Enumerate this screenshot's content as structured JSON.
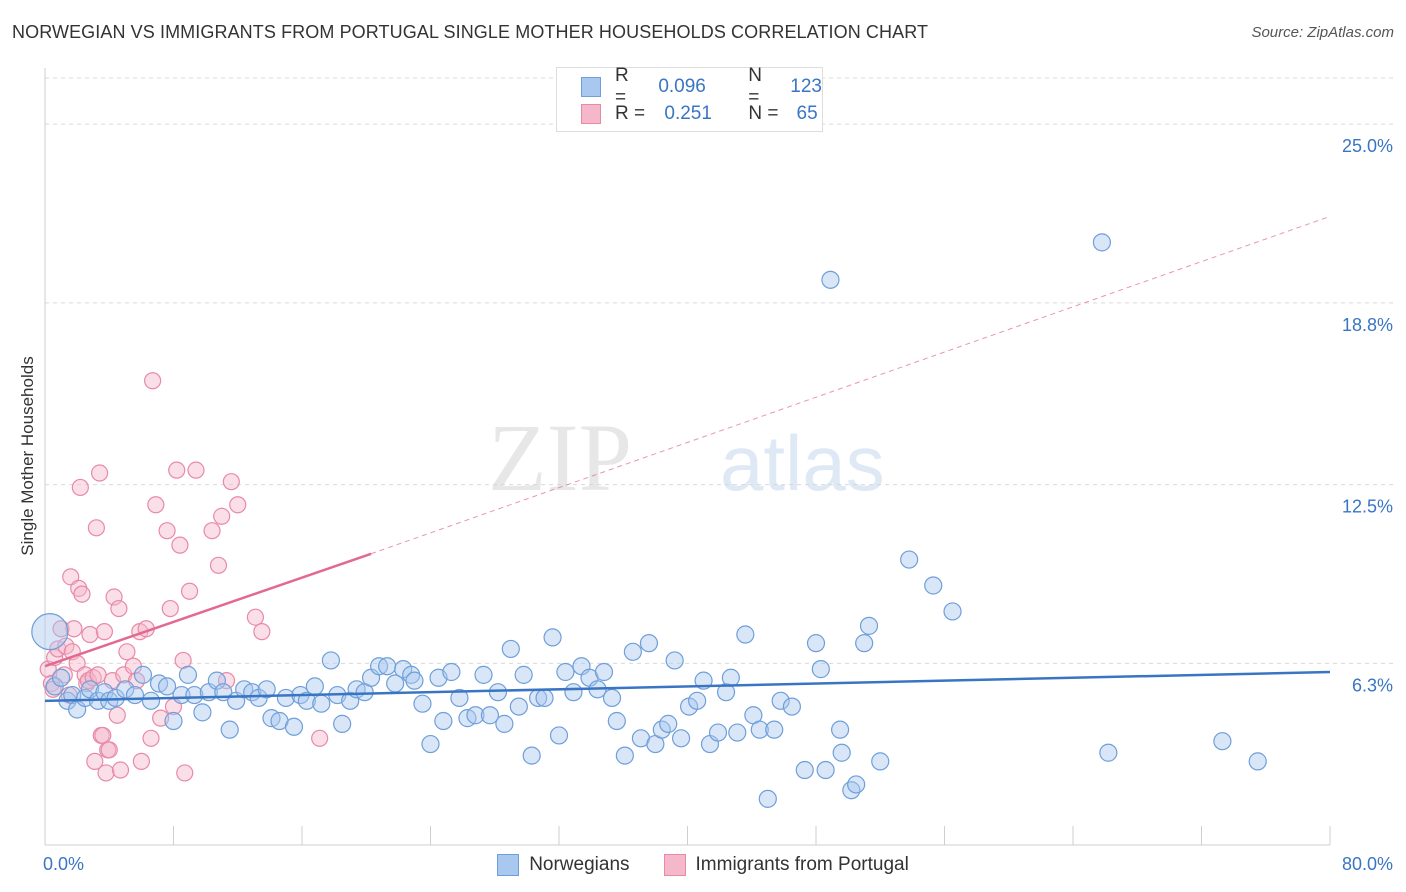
{
  "title": "NORWEGIAN VS IMMIGRANTS FROM PORTUGAL SINGLE MOTHER HOUSEHOLDS CORRELATION CHART",
  "source": "Source: ZipAtlas.com",
  "watermark": {
    "zip": "ZIP",
    "atlas": "atlas"
  },
  "legend": {
    "rows": [
      {
        "r_label": "R =",
        "r_value": "0.096",
        "n_label": "N =",
        "n_value": "123"
      },
      {
        "r_label": "R =",
        "r_value": "0.251",
        "n_label": "N =",
        "n_value": "65"
      }
    ]
  },
  "colors": {
    "blue_fill": "#a9c8ef",
    "blue_stroke": "#6f9fd8",
    "blue_line": "#3a75c4",
    "pink_fill": "#f5b8cb",
    "pink_stroke": "#e88aa7",
    "pink_line": "#e2698f",
    "grid": "#d9d9d9",
    "axis_text": "#3a75c4"
  },
  "chart_data": {
    "type": "scatter",
    "title": "NORWEGIAN VS IMMIGRANTS FROM PORTUGAL SINGLE MOTHER HOUSEHOLDS CORRELATION CHART",
    "xlabel": "",
    "ylabel": "Single Mother Households",
    "xlim": [
      0,
      80
    ],
    "ylim": [
      0,
      26.6
    ],
    "x_tick_labels": [
      "0.0%",
      "80.0%"
    ],
    "y_ticks": [
      6.3,
      12.5,
      18.8,
      25.0
    ],
    "y_tick_labels": [
      "6.3%",
      "12.5%",
      "18.8%",
      "25.0%"
    ],
    "grid": "horizontal dashed",
    "legend_position": "top-center",
    "series": [
      {
        "name": "Norwegians",
        "color": "#a9c8ef",
        "R": 0.096,
        "N": 123,
        "trend": {
          "x": [
            0,
            80
          ],
          "y": [
            5.0,
            6.0
          ]
        },
        "points": [
          [
            0.3,
            7.4
          ],
          [
            0.6,
            5.5
          ],
          [
            1.0,
            5.8
          ],
          [
            1.4,
            5.0
          ],
          [
            1.7,
            5.2
          ],
          [
            2.0,
            4.7
          ],
          [
            2.5,
            5.1
          ],
          [
            2.8,
            5.4
          ],
          [
            3.3,
            5.0
          ],
          [
            3.7,
            5.3
          ],
          [
            4.0,
            5.0
          ],
          [
            4.4,
            5.1
          ],
          [
            5.0,
            5.4
          ],
          [
            5.6,
            5.2
          ],
          [
            6.1,
            5.9
          ],
          [
            6.6,
            5.0
          ],
          [
            7.1,
            5.6
          ],
          [
            7.6,
            5.5
          ],
          [
            8.0,
            4.3
          ],
          [
            8.5,
            5.2
          ],
          [
            8.9,
            5.9
          ],
          [
            9.3,
            5.2
          ],
          [
            9.8,
            4.6
          ],
          [
            10.2,
            5.3
          ],
          [
            10.7,
            5.7
          ],
          [
            11.1,
            5.3
          ],
          [
            11.5,
            4.0
          ],
          [
            11.9,
            5.0
          ],
          [
            12.4,
            5.4
          ],
          [
            12.9,
            5.3
          ],
          [
            13.3,
            5.1
          ],
          [
            13.8,
            5.4
          ],
          [
            14.1,
            4.4
          ],
          [
            14.6,
            4.3
          ],
          [
            15.0,
            5.1
          ],
          [
            15.5,
            4.1
          ],
          [
            15.9,
            5.2
          ],
          [
            16.3,
            5.0
          ],
          [
            16.8,
            5.5
          ],
          [
            17.2,
            4.9
          ],
          [
            17.8,
            6.4
          ],
          [
            18.2,
            5.2
          ],
          [
            18.5,
            4.2
          ],
          [
            19.0,
            5.0
          ],
          [
            19.4,
            5.4
          ],
          [
            19.9,
            5.3
          ],
          [
            20.3,
            5.8
          ],
          [
            20.8,
            6.2
          ],
          [
            21.3,
            6.2
          ],
          [
            21.8,
            5.6
          ],
          [
            22.3,
            6.1
          ],
          [
            22.8,
            5.9
          ],
          [
            23.0,
            5.7
          ],
          [
            23.5,
            4.9
          ],
          [
            24.0,
            3.5
          ],
          [
            24.5,
            5.8
          ],
          [
            24.8,
            4.3
          ],
          [
            25.3,
            6.0
          ],
          [
            25.8,
            5.1
          ],
          [
            26.3,
            4.4
          ],
          [
            26.8,
            4.5
          ],
          [
            27.3,
            5.9
          ],
          [
            27.7,
            4.5
          ],
          [
            28.2,
            5.3
          ],
          [
            28.6,
            4.2
          ],
          [
            29.0,
            6.8
          ],
          [
            29.5,
            4.8
          ],
          [
            29.8,
            5.9
          ],
          [
            30.3,
            3.1
          ],
          [
            30.7,
            5.1
          ],
          [
            31.1,
            5.1
          ],
          [
            31.6,
            7.2
          ],
          [
            32.0,
            3.8
          ],
          [
            32.4,
            6.0
          ],
          [
            32.9,
            5.3
          ],
          [
            33.4,
            6.2
          ],
          [
            33.9,
            5.8
          ],
          [
            34.4,
            5.4
          ],
          [
            34.8,
            6.0
          ],
          [
            35.3,
            5.1
          ],
          [
            35.6,
            4.3
          ],
          [
            36.1,
            3.1
          ],
          [
            36.6,
            6.7
          ],
          [
            37.1,
            3.7
          ],
          [
            37.6,
            7.0
          ],
          [
            38.0,
            3.5
          ],
          [
            38.4,
            4.0
          ],
          [
            38.8,
            4.2
          ],
          [
            39.2,
            6.4
          ],
          [
            39.6,
            3.7
          ],
          [
            40.1,
            4.8
          ],
          [
            40.6,
            5.0
          ],
          [
            41.0,
            5.7
          ],
          [
            41.4,
            3.5
          ],
          [
            41.9,
            3.9
          ],
          [
            42.4,
            5.3
          ],
          [
            42.7,
            5.8
          ],
          [
            43.1,
            3.9
          ],
          [
            43.6,
            7.3
          ],
          [
            44.1,
            4.5
          ],
          [
            44.5,
            4.0
          ],
          [
            45.0,
            1.6
          ],
          [
            45.4,
            4.0
          ],
          [
            45.8,
            5.0
          ],
          [
            46.5,
            4.8
          ],
          [
            47.3,
            2.6
          ],
          [
            48.0,
            7.0
          ],
          [
            48.3,
            6.1
          ],
          [
            48.6,
            2.6
          ],
          [
            48.9,
            19.6
          ],
          [
            49.5,
            4.0
          ],
          [
            49.6,
            3.2
          ],
          [
            50.2,
            1.9
          ],
          [
            50.5,
            2.1
          ],
          [
            51.0,
            7.0
          ],
          [
            51.3,
            7.6
          ],
          [
            52.0,
            2.9
          ],
          [
            53.8,
            9.9
          ],
          [
            55.3,
            9.0
          ],
          [
            56.5,
            8.1
          ],
          [
            65.8,
            20.9
          ],
          [
            66.2,
            3.2
          ],
          [
            73.3,
            3.6
          ],
          [
            75.5,
            2.9
          ]
        ]
      },
      {
        "name": "Immigrants from Portugal",
        "color": "#f5b8cb",
        "R": 0.251,
        "N": 65,
        "trend": {
          "x": [
            0,
            20.3
          ],
          "y": [
            6.2,
            10.1
          ],
          "dashed_to": [
            80,
            21.8
          ]
        },
        "points": [
          [
            0.2,
            6.1
          ],
          [
            0.4,
            5.6
          ],
          [
            0.6,
            6.5
          ],
          [
            0.8,
            6.8
          ],
          [
            1.0,
            7.5
          ],
          [
            1.2,
            5.9
          ],
          [
            1.3,
            6.9
          ],
          [
            1.5,
            5.2
          ],
          [
            1.6,
            9.3
          ],
          [
            1.7,
            6.7
          ],
          [
            1.8,
            7.5
          ],
          [
            2.0,
            6.3
          ],
          [
            2.1,
            8.9
          ],
          [
            2.2,
            12.4
          ],
          [
            2.3,
            8.7
          ],
          [
            2.5,
            5.9
          ],
          [
            2.6,
            5.6
          ],
          [
            2.7,
            5.7
          ],
          [
            2.8,
            7.3
          ],
          [
            3.0,
            5.8
          ],
          [
            3.1,
            2.9
          ],
          [
            3.2,
            11.0
          ],
          [
            3.3,
            5.9
          ],
          [
            3.4,
            12.9
          ],
          [
            3.5,
            3.8
          ],
          [
            3.6,
            3.8
          ],
          [
            3.7,
            7.4
          ],
          [
            3.8,
            2.5
          ],
          [
            3.9,
            3.3
          ],
          [
            4.0,
            3.3
          ],
          [
            4.2,
            5.7
          ],
          [
            4.3,
            8.6
          ],
          [
            4.5,
            4.5
          ],
          [
            4.6,
            8.2
          ],
          [
            4.7,
            2.6
          ],
          [
            4.9,
            5.9
          ],
          [
            5.1,
            6.7
          ],
          [
            5.5,
            6.2
          ],
          [
            5.7,
            5.7
          ],
          [
            5.9,
            7.4
          ],
          [
            6.0,
            2.9
          ],
          [
            6.3,
            7.5
          ],
          [
            6.6,
            3.7
          ],
          [
            6.7,
            16.1
          ],
          [
            6.9,
            11.8
          ],
          [
            7.2,
            4.4
          ],
          [
            7.6,
            10.9
          ],
          [
            7.8,
            8.2
          ],
          [
            8.0,
            4.8
          ],
          [
            8.2,
            13.0
          ],
          [
            8.4,
            10.4
          ],
          [
            8.6,
            6.4
          ],
          [
            8.7,
            2.5
          ],
          [
            9.0,
            8.8
          ],
          [
            9.4,
            13.0
          ],
          [
            10.4,
            10.9
          ],
          [
            10.8,
            9.7
          ],
          [
            11.0,
            11.4
          ],
          [
            11.3,
            5.7
          ],
          [
            11.6,
            12.6
          ],
          [
            12.0,
            11.8
          ],
          [
            13.1,
            7.9
          ],
          [
            13.5,
            7.4
          ],
          [
            17.1,
            3.7
          ],
          [
            0.5,
            5.4
          ]
        ]
      }
    ]
  }
}
